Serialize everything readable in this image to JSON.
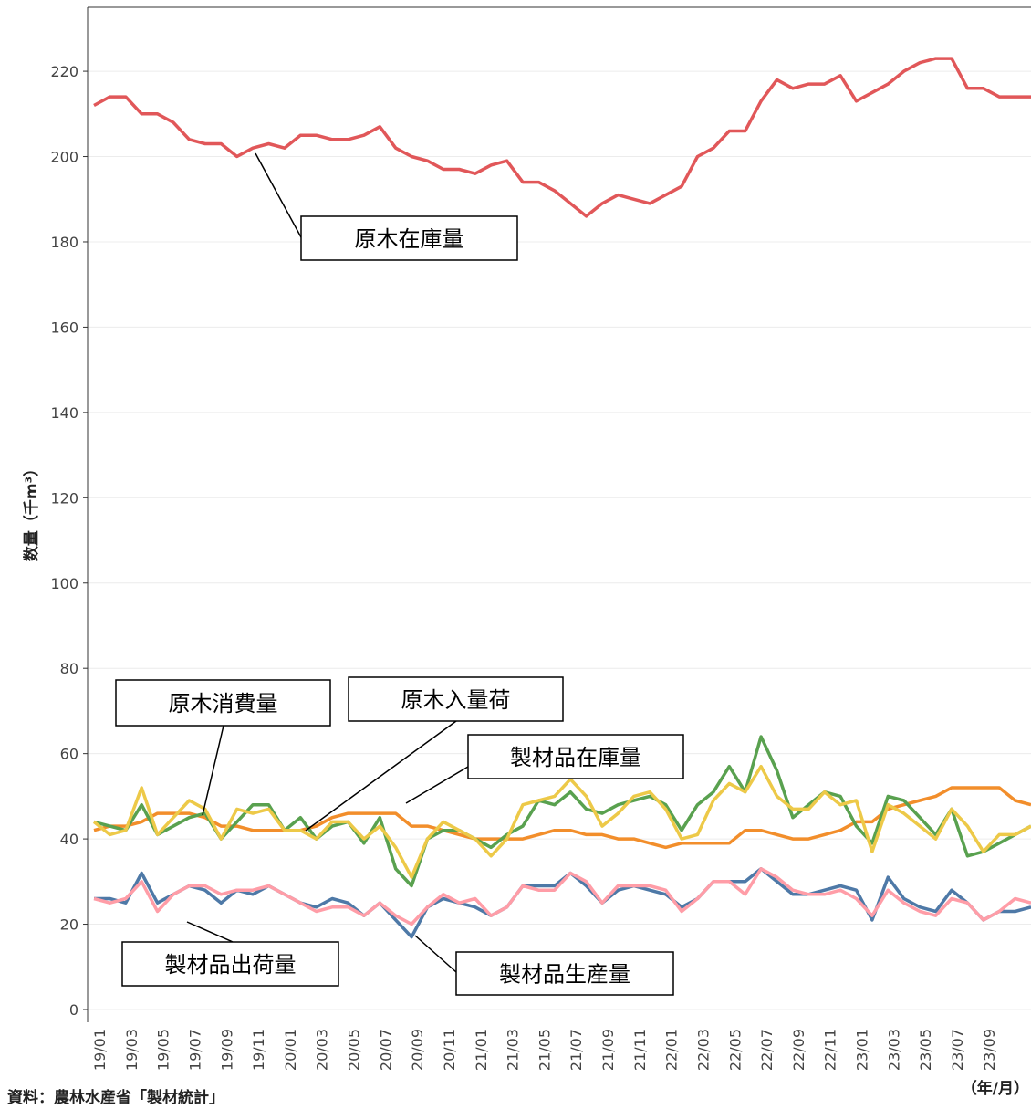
{
  "chart_data": {
    "type": "line",
    "y_label": "数量（千m³）",
    "x_label": "（年/月）",
    "source": "資料：農林水産省「製材統計」",
    "categories": [
      "19/01",
      null,
      "19/03",
      null,
      "19/05",
      null,
      "19/07",
      null,
      "19/09",
      null,
      "19/11",
      null,
      "20/01",
      null,
      "20/03",
      null,
      "20/05",
      null,
      "20/07",
      null,
      "20/09",
      null,
      "20/11",
      null,
      "21/01",
      null,
      "21/03",
      null,
      "21/05",
      null,
      "21/07",
      null,
      "21/09",
      null,
      "21/11",
      null,
      "22/01",
      null,
      "22/03",
      null,
      "22/05",
      null,
      "22/07",
      null,
      "22/09",
      null,
      "22/11",
      null,
      "23/01",
      null,
      "23/03",
      null,
      "23/05",
      null,
      "23/07",
      null,
      "23/09",
      null,
      null,
      null
    ],
    "ylim": [
      -3,
      235
    ],
    "yticks": [
      0,
      20,
      40,
      60,
      80,
      100,
      120,
      140,
      160,
      180,
      200,
      220
    ],
    "grid": true,
    "series": [
      {
        "name": "原木在庫量",
        "color": "#e15759",
        "values": [
          212,
          214,
          214,
          210,
          210,
          208,
          204,
          203,
          203,
          200,
          202,
          203,
          202,
          205,
          205,
          204,
          204,
          205,
          207,
          202,
          200,
          199,
          197,
          197,
          196,
          198,
          199,
          194,
          194,
          192,
          189,
          186,
          189,
          191,
          190,
          189,
          191,
          193,
          200,
          202,
          206,
          206,
          213,
          218,
          216,
          217,
          217,
          219,
          213,
          215,
          217,
          220,
          222,
          223,
          223,
          216,
          216,
          214,
          214,
          214
        ]
      },
      {
        "name": "製材品在庫量",
        "color": "#f28e2b",
        "values": [
          42,
          43,
          43,
          44,
          46,
          46,
          46,
          45,
          43,
          43,
          42,
          42,
          42,
          42,
          43,
          45,
          46,
          46,
          46,
          46,
          43,
          43,
          42,
          41,
          40,
          40,
          40,
          40,
          41,
          42,
          42,
          41,
          41,
          40,
          40,
          39,
          38,
          39,
          39,
          39,
          39,
          42,
          42,
          41,
          40,
          40,
          41,
          42,
          44,
          44,
          47,
          48,
          49,
          50,
          52,
          52,
          52,
          52,
          49,
          48
        ]
      },
      {
        "name": "原木入量荷",
        "color": "#59a14f",
        "values": [
          44,
          43,
          42,
          48,
          41,
          43,
          45,
          46,
          40,
          44,
          48,
          48,
          42,
          45,
          40,
          43,
          44,
          39,
          45,
          33,
          29,
          40,
          42,
          42,
          40,
          38,
          41,
          43,
          49,
          48,
          51,
          47,
          46,
          48,
          49,
          50,
          48,
          42,
          48,
          51,
          57,
          51,
          64,
          56,
          45,
          48,
          51,
          50,
          43,
          39,
          50,
          49,
          45,
          41,
          47,
          36,
          37,
          39,
          41,
          43
        ]
      },
      {
        "name": "原木消費量",
        "color": "#edc948",
        "values": [
          44,
          41,
          42,
          52,
          41,
          45,
          49,
          47,
          40,
          47,
          46,
          47,
          42,
          42,
          40,
          44,
          44,
          40,
          43,
          38,
          31,
          40,
          44,
          42,
          40,
          36,
          40,
          48,
          49,
          50,
          54,
          50,
          43,
          46,
          50,
          51,
          47,
          40,
          41,
          49,
          53,
          51,
          57,
          50,
          47,
          47,
          51,
          48,
          49,
          37,
          48,
          46,
          43,
          40,
          47,
          43,
          37,
          41,
          41,
          43
        ]
      },
      {
        "name": "製材品出荷量",
        "color": "#4e79a7",
        "values": [
          26,
          26,
          25,
          32,
          25,
          27,
          29,
          28,
          25,
          28,
          27,
          29,
          27,
          25,
          24,
          26,
          25,
          22,
          25,
          21,
          17,
          24,
          26,
          25,
          24,
          22,
          24,
          29,
          29,
          29,
          32,
          29,
          25,
          28,
          29,
          28,
          27,
          24,
          26,
          30,
          30,
          30,
          33,
          30,
          27,
          27,
          28,
          29,
          28,
          21,
          31,
          26,
          24,
          23,
          28,
          25,
          21,
          23,
          23,
          24
        ]
      },
      {
        "name": "製材品生産量",
        "color": "#ff9da7",
        "values": [
          26,
          25,
          26,
          30,
          23,
          27,
          29,
          29,
          27,
          28,
          28,
          29,
          27,
          25,
          23,
          24,
          24,
          22,
          25,
          22,
          20,
          24,
          27,
          25,
          26,
          22,
          24,
          29,
          28,
          28,
          32,
          30,
          25,
          29,
          29,
          29,
          28,
          23,
          26,
          30,
          30,
          27,
          33,
          31,
          28,
          27,
          27,
          28,
          26,
          22,
          28,
          25,
          23,
          22,
          26,
          25,
          21,
          23,
          26,
          25
        ]
      }
    ]
  }
}
